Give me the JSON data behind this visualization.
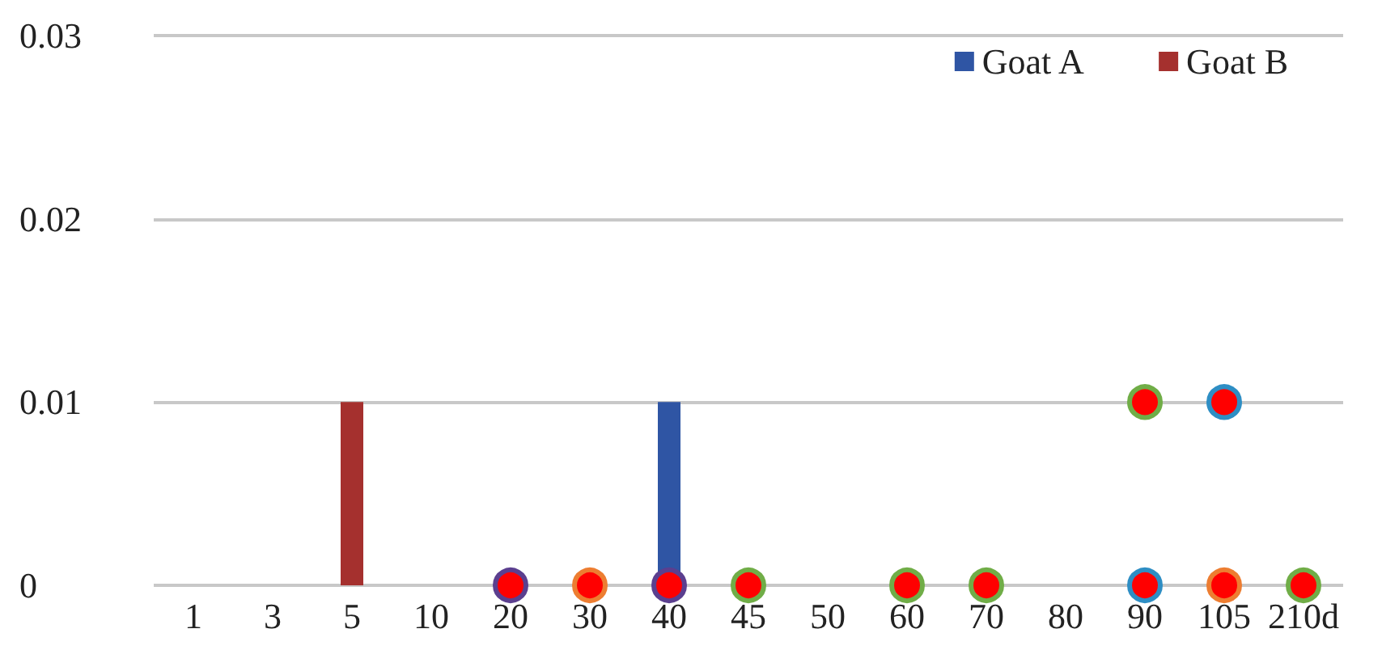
{
  "chart_data": {
    "type": "bar",
    "categories": [
      "1",
      "3",
      "5",
      "10",
      "20",
      "30",
      "40",
      "45",
      "50",
      "60",
      "70",
      "80",
      "90",
      "105",
      "210d"
    ],
    "series": [
      {
        "name": "Goat A",
        "color": "#2f55a4",
        "values": [
          0,
          0,
          0,
          0,
          0,
          0,
          0.01,
          0,
          0,
          0,
          0,
          0,
          0,
          0,
          0
        ]
      },
      {
        "name": "Goat B",
        "color": "#a5302e",
        "values": [
          0,
          0,
          0.01,
          0,
          0,
          0,
          0,
          0,
          0,
          0,
          0,
          0,
          0,
          0,
          0
        ]
      },
      {
        "type": "scatter",
        "color": "#ff0000",
        "colors": [
          null,
          null,
          null,
          null,
          "#5b3f8f",
          null,
          "#5b3f8f",
          null,
          null,
          null,
          null,
          null,
          null,
          null,
          null
        ],
        "values": [
          null,
          null,
          null,
          null,
          0,
          null,
          0,
          null,
          null,
          null,
          null,
          null,
          null,
          null,
          null
        ]
      },
      {
        "type": "scatter",
        "color": "#ff0000",
        "colors": [
          null,
          null,
          null,
          null,
          null,
          "#ed7d31",
          null,
          null,
          null,
          null,
          null,
          null,
          null,
          "#ed7d31",
          null
        ],
        "values": [
          null,
          null,
          null,
          null,
          null,
          0,
          null,
          null,
          null,
          null,
          null,
          null,
          null,
          0,
          null
        ]
      },
      {
        "type": "scatter",
        "color": "#ff0000",
        "colors": [
          null,
          null,
          null,
          null,
          null,
          null,
          null,
          "#70ad47",
          null,
          "#70ad47",
          "#70ad47",
          null,
          "#70ad47",
          null,
          "#70ad47"
        ],
        "values": [
          null,
          null,
          null,
          null,
          null,
          null,
          null,
          0,
          null,
          0,
          0,
          null,
          0.01,
          null,
          0
        ]
      },
      {
        "type": "scatter",
        "color": "#ff0000",
        "colors": [
          null,
          null,
          null,
          null,
          null,
          null,
          null,
          null,
          null,
          null,
          null,
          null,
          "#2e8ec4",
          "#2e8ec4",
          null
        ],
        "values": [
          null,
          null,
          null,
          null,
          null,
          null,
          null,
          null,
          null,
          null,
          null,
          null,
          0,
          0.01,
          null
        ]
      }
    ],
    "ylim": [
      0,
      0.03
    ],
    "yticks": [
      0,
      0.01,
      0.02,
      0.03
    ],
    "grid": "y",
    "legend": "top right",
    "marker": "circle"
  }
}
